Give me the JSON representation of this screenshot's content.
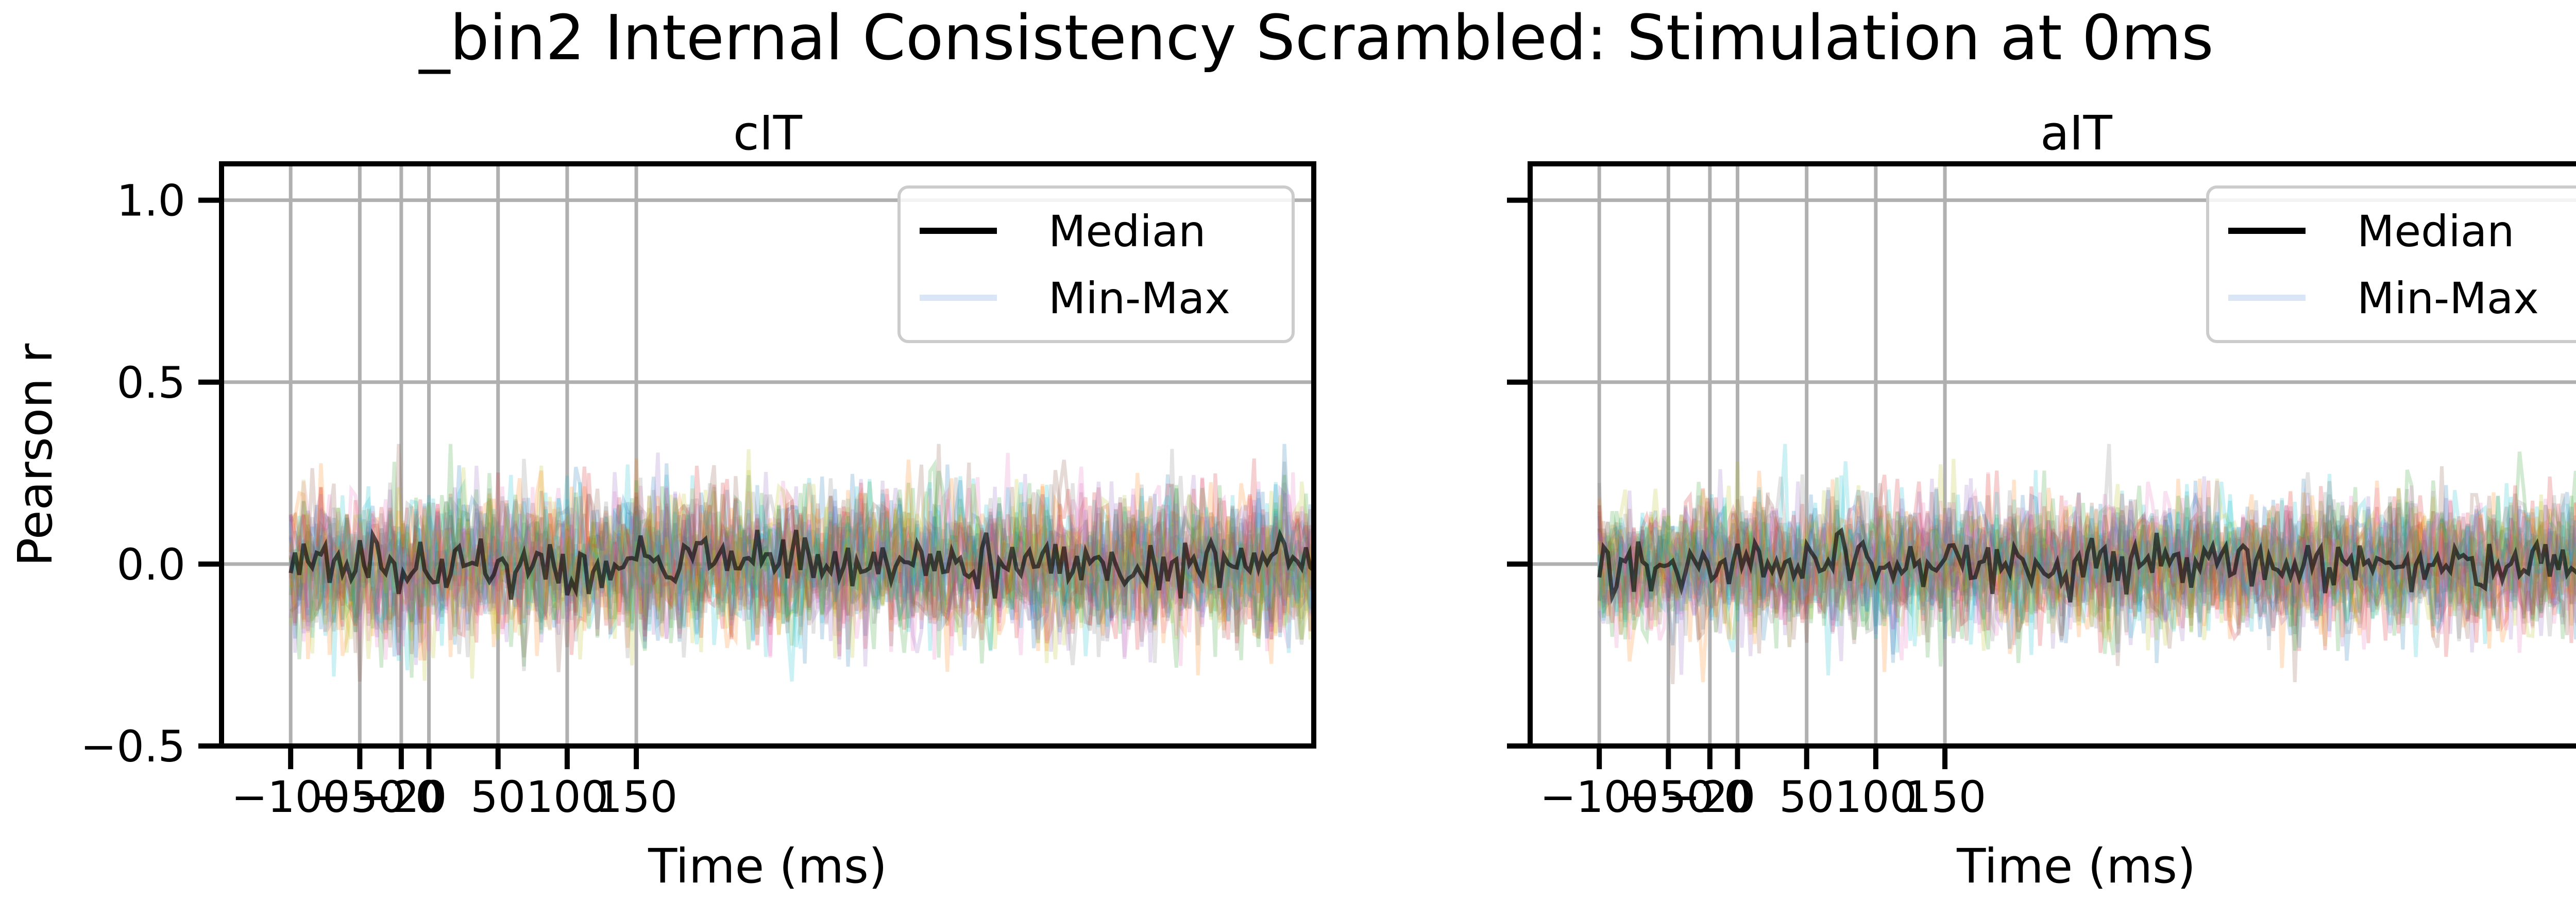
{
  "figure": {
    "title": "_bin2 Internal Consistency Scrambled: Stimulation at 0ms"
  },
  "colors": {
    "grid": "#b0b0b0",
    "axis": "#000000",
    "median": "#000000",
    "minmax": "#aec7e8",
    "palette": [
      "#1f77b4",
      "#ff7f0e",
      "#2ca02c",
      "#d62728",
      "#9467bd",
      "#8c564b",
      "#e377c2",
      "#7f7f7f",
      "#bcbd22",
      "#17becf"
    ]
  },
  "chart_data": [
    {
      "type": "line",
      "panel_title": "cIT",
      "xlabel": "Time (ms)",
      "ylabel": "Pearson r",
      "xlim": [
        -150,
        640
      ],
      "ylim": [
        -0.5,
        1.1
      ],
      "xticks": [
        -100,
        -50,
        -20,
        0,
        50,
        100,
        150
      ],
      "xtick_labels": [
        "−100",
        "−50",
        "−20",
        "0",
        "50",
        "100",
        "150"
      ],
      "yticks": [
        -0.5,
        0.0,
        0.5,
        1.0
      ],
      "ytick_labels": [
        "−0.5",
        "0.0",
        "0.5",
        "1.0"
      ],
      "vlines": [
        -100,
        -50,
        -20,
        0,
        50,
        100,
        150
      ],
      "grid": true,
      "legend": {
        "placement": "top-right",
        "entries": [
          "Median",
          "Min-Max"
        ]
      },
      "series_summary": {
        "x_start": -100,
        "x_end": 650,
        "center": 0.0,
        "spread": 0.12,
        "peak_min": -0.33,
        "peak_max": 0.33
      },
      "seed": 17
    },
    {
      "type": "line",
      "panel_title": "aIT",
      "xlabel": "Time (ms)",
      "ylabel": "",
      "xlim": [
        -150,
        640
      ],
      "ylim": [
        -0.5,
        1.1
      ],
      "xticks": [
        -100,
        -50,
        -20,
        0,
        50,
        100,
        150
      ],
      "xtick_labels": [
        "−100",
        "−50",
        "−20",
        "0",
        "50",
        "100",
        "150"
      ],
      "yticks": [
        -0.5,
        0.0,
        0.5,
        1.0
      ],
      "ytick_labels": [
        "",
        "",
        "",
        ""
      ],
      "vlines": [
        -100,
        -50,
        -20,
        0,
        50,
        100,
        150
      ],
      "grid": true,
      "legend": {
        "placement": "top-right",
        "entries": [
          "Median",
          "Min-Max"
        ]
      },
      "series_summary": {
        "x_start": -100,
        "x_end": 650,
        "center": 0.0,
        "spread": 0.11,
        "peak_min": -0.33,
        "peak_max": 0.33
      },
      "seed": 53
    }
  ]
}
